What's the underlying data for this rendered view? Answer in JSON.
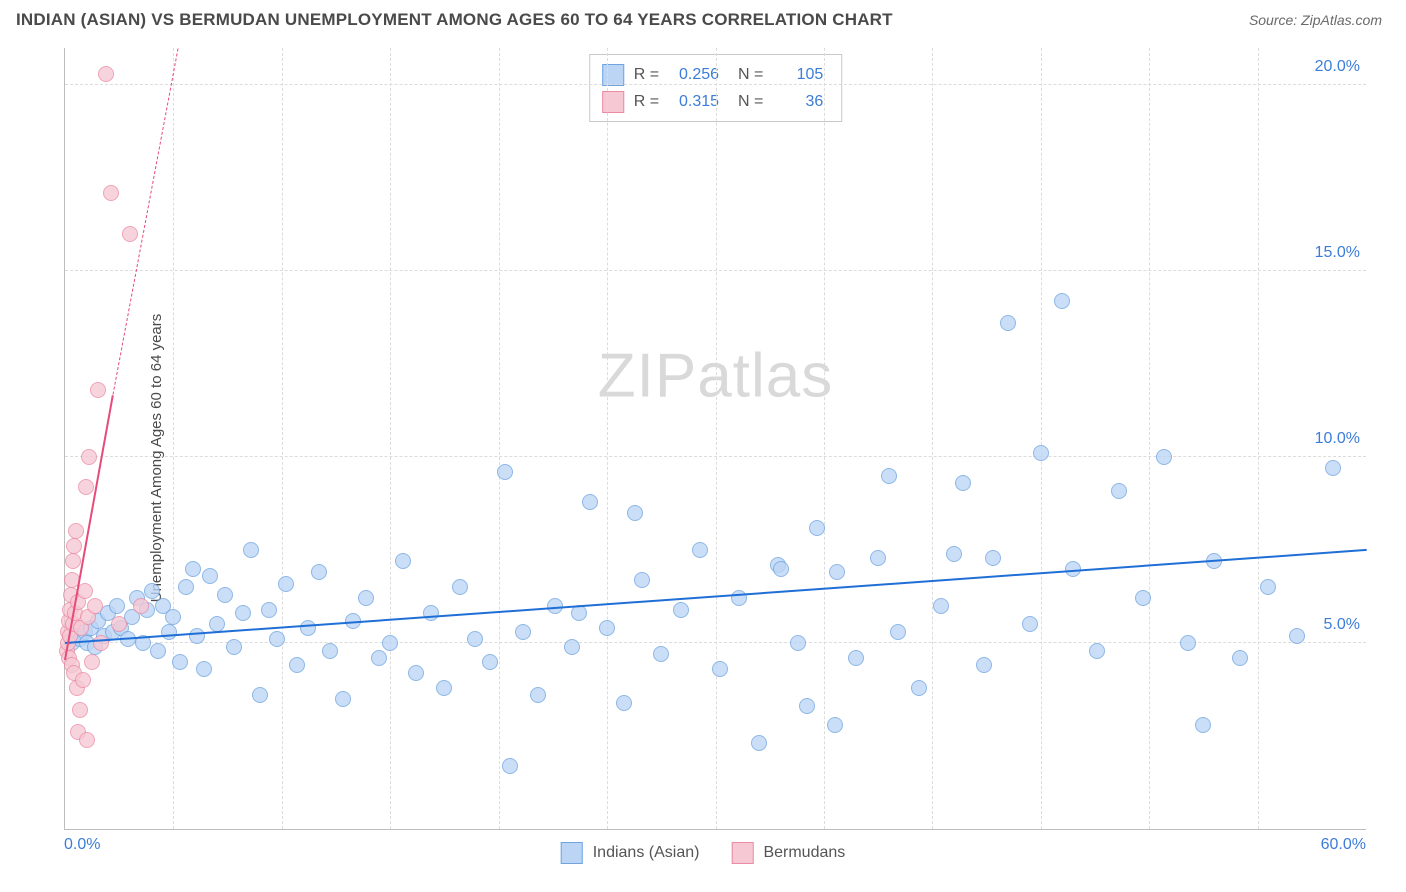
{
  "header": {
    "title": "INDIAN (ASIAN) VS BERMUDAN UNEMPLOYMENT AMONG AGES 60 TO 64 YEARS CORRELATION CHART",
    "source_prefix": "Source: ",
    "source_name": "ZipAtlas.com"
  },
  "ylabel": "Unemployment Among Ages 60 to 64 years",
  "watermark": {
    "part1": "ZIP",
    "part2": "atlas"
  },
  "chart": {
    "type": "scatter",
    "xlim": [
      0,
      60
    ],
    "ylim": [
      0,
      21
    ],
    "x_min_label": "0.0%",
    "x_max_label": "60.0%",
    "x_gridlines": [
      5,
      10,
      15,
      20,
      25,
      30,
      35,
      40,
      45,
      50,
      55
    ],
    "yticks": [
      {
        "v": 5,
        "label": "5.0%"
      },
      {
        "v": 10,
        "label": "10.0%"
      },
      {
        "v": 15,
        "label": "15.0%"
      },
      {
        "v": 20,
        "label": "20.0%"
      }
    ],
    "background_color": "#ffffff",
    "grid_color": "#dcdcdc",
    "tick_color_blue": "#3b7dd8",
    "point_radius": 8,
    "series": [
      {
        "name": "Indians (Asian)",
        "fill": "#bcd5f5",
        "stroke": "#6fa4e0",
        "opacity": 0.78,
        "R": "0.256",
        "N": "105",
        "trend": {
          "x1": 0,
          "y1": 5.05,
          "x2": 60,
          "y2": 7.55,
          "color": "#1f6fd6",
          "width": 2.2,
          "dash_extend": false
        },
        "points": [
          [
            0.3,
            5.0
          ],
          [
            0.5,
            5.2
          ],
          [
            0.7,
            5.1
          ],
          [
            0.9,
            5.3
          ],
          [
            1.0,
            5.0
          ],
          [
            1.2,
            5.4
          ],
          [
            1.4,
            4.9
          ],
          [
            1.5,
            5.6
          ],
          [
            1.8,
            5.2
          ],
          [
            2.0,
            5.8
          ],
          [
            2.2,
            5.3
          ],
          [
            2.4,
            6.0
          ],
          [
            2.6,
            5.4
          ],
          [
            2.9,
            5.1
          ],
          [
            3.1,
            5.7
          ],
          [
            3.3,
            6.2
          ],
          [
            3.6,
            5.0
          ],
          [
            3.8,
            5.9
          ],
          [
            4.0,
            6.4
          ],
          [
            4.3,
            4.8
          ],
          [
            4.5,
            6.0
          ],
          [
            4.8,
            5.3
          ],
          [
            5.0,
            5.7
          ],
          [
            5.3,
            4.5
          ],
          [
            5.6,
            6.5
          ],
          [
            5.9,
            7.0
          ],
          [
            6.1,
            5.2
          ],
          [
            6.4,
            4.3
          ],
          [
            6.7,
            6.8
          ],
          [
            7.0,
            5.5
          ],
          [
            7.4,
            6.3
          ],
          [
            7.8,
            4.9
          ],
          [
            8.2,
            5.8
          ],
          [
            8.6,
            7.5
          ],
          [
            9.0,
            3.6
          ],
          [
            9.4,
            5.9
          ],
          [
            9.8,
            5.1
          ],
          [
            10.2,
            6.6
          ],
          [
            10.7,
            4.4
          ],
          [
            11.2,
            5.4
          ],
          [
            11.7,
            6.9
          ],
          [
            12.2,
            4.8
          ],
          [
            12.8,
            3.5
          ],
          [
            13.3,
            5.6
          ],
          [
            13.9,
            6.2
          ],
          [
            14.5,
            4.6
          ],
          [
            15.0,
            5.0
          ],
          [
            15.6,
            7.2
          ],
          [
            16.2,
            4.2
          ],
          [
            16.9,
            5.8
          ],
          [
            17.5,
            3.8
          ],
          [
            18.2,
            6.5
          ],
          [
            18.9,
            5.1
          ],
          [
            19.6,
            4.5
          ],
          [
            20.3,
            9.6
          ],
          [
            20.5,
            1.7
          ],
          [
            21.1,
            5.3
          ],
          [
            21.8,
            3.6
          ],
          [
            22.6,
            6.0
          ],
          [
            23.4,
            4.9
          ],
          [
            23.7,
            5.8
          ],
          [
            24.2,
            8.8
          ],
          [
            25.0,
            5.4
          ],
          [
            25.8,
            3.4
          ],
          [
            26.6,
            6.7
          ],
          [
            27.5,
            4.7
          ],
          [
            26.3,
            8.5
          ],
          [
            28.4,
            5.9
          ],
          [
            29.3,
            7.5
          ],
          [
            30.2,
            4.3
          ],
          [
            31.1,
            6.2
          ],
          [
            32.0,
            2.3
          ],
          [
            32.9,
            7.1
          ],
          [
            33.8,
            5.0
          ],
          [
            33.0,
            7.0
          ],
          [
            34.7,
            8.1
          ],
          [
            34.2,
            3.3
          ],
          [
            35.6,
            6.9
          ],
          [
            36.5,
            4.6
          ],
          [
            35.5,
            2.8
          ],
          [
            37.5,
            7.3
          ],
          [
            38.4,
            5.3
          ],
          [
            38.0,
            9.5
          ],
          [
            39.4,
            3.8
          ],
          [
            40.4,
            6.0
          ],
          [
            41.0,
            7.4
          ],
          [
            41.4,
            9.3
          ],
          [
            42.4,
            4.4
          ],
          [
            42.8,
            7.3
          ],
          [
            43.5,
            13.6
          ],
          [
            44.5,
            5.5
          ],
          [
            45.0,
            10.1
          ],
          [
            46.0,
            14.2
          ],
          [
            46.5,
            7.0
          ],
          [
            47.6,
            4.8
          ],
          [
            48.6,
            9.1
          ],
          [
            49.7,
            6.2
          ],
          [
            50.7,
            10.0
          ],
          [
            51.8,
            5.0
          ],
          [
            52.5,
            2.8
          ],
          [
            53.0,
            7.2
          ],
          [
            54.2,
            4.6
          ],
          [
            55.5,
            6.5
          ],
          [
            56.8,
            5.2
          ],
          [
            58.5,
            9.7
          ]
        ]
      },
      {
        "name": "Bermudans",
        "fill": "#f6c8d4",
        "stroke": "#eb8ba4",
        "opacity": 0.78,
        "R": "0.315",
        "N": "36",
        "trend": {
          "x1": 0,
          "y1": 4.6,
          "x2": 2.2,
          "y2": 11.7,
          "color": "#e64b7a",
          "width": 2.2,
          "dash_extend": true,
          "dash_x2": 5.2,
          "dash_y2": 21.0
        },
        "points": [
          [
            0.1,
            4.8
          ],
          [
            0.12,
            5.3
          ],
          [
            0.15,
            5.0
          ],
          [
            0.18,
            5.6
          ],
          [
            0.2,
            4.6
          ],
          [
            0.22,
            5.9
          ],
          [
            0.25,
            5.2
          ],
          [
            0.28,
            6.3
          ],
          [
            0.3,
            4.4
          ],
          [
            0.32,
            6.7
          ],
          [
            0.35,
            5.5
          ],
          [
            0.38,
            7.2
          ],
          [
            0.4,
            4.2
          ],
          [
            0.43,
            7.6
          ],
          [
            0.46,
            5.8
          ],
          [
            0.5,
            8.0
          ],
          [
            0.55,
            3.8
          ],
          [
            0.6,
            2.6
          ],
          [
            0.62,
            6.1
          ],
          [
            0.7,
            3.2
          ],
          [
            0.75,
            5.4
          ],
          [
            0.85,
            4.0
          ],
          [
            0.9,
            6.4
          ],
          [
            0.95,
            9.2
          ],
          [
            1.0,
            2.4
          ],
          [
            1.05,
            5.7
          ],
          [
            1.1,
            10.0
          ],
          [
            1.25,
            4.5
          ],
          [
            1.4,
            6.0
          ],
          [
            1.5,
            11.8
          ],
          [
            1.65,
            5.0
          ],
          [
            1.9,
            20.3
          ],
          [
            2.1,
            17.1
          ],
          [
            2.5,
            5.5
          ],
          [
            3.0,
            16.0
          ],
          [
            3.5,
            6.0
          ]
        ]
      }
    ]
  },
  "bottom_legend": [
    {
      "label": "Indians (Asian)",
      "fill": "#bcd5f5",
      "stroke": "#6fa4e0"
    },
    {
      "label": "Bermudans",
      "fill": "#f6c8d4",
      "stroke": "#eb8ba4"
    }
  ]
}
